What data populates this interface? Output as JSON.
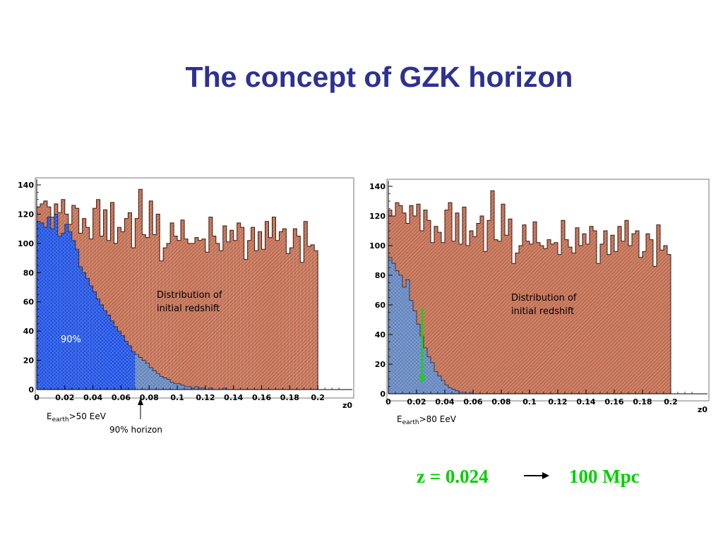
{
  "title": "The concept of GZK horizon",
  "conversion": {
    "redshift_label": "z = 0.024",
    "distance_label": "100 Mpc",
    "arrow_color": "#000000",
    "text_color": "#00d000"
  },
  "colors": {
    "initial": "#c97a5a",
    "initial_stroke": "#3a1a10",
    "survivors_dense": "#2255dd",
    "survivors_light": "#7da0d0",
    "marker": "#22cc22"
  },
  "chart_data": [
    {
      "type": "bar",
      "xlabel": "z0",
      "ylabel": "",
      "xlim": [
        0,
        0.22
      ],
      "ylim": [
        0,
        140
      ],
      "x_ticks": [
        "0",
        "0.02",
        "0.04",
        "0.06",
        "0.08",
        "0.1",
        "0.12",
        "0.14",
        "0.16",
        "0.18",
        "0.2"
      ],
      "y_ticks": [
        "0",
        "20",
        "40",
        "60",
        "80",
        "100",
        "120",
        "140"
      ],
      "bin_width": 0.0025,
      "series": [
        {
          "name": "Distribution of initial redshift",
          "values": [
            125,
            127,
            129,
            125,
            118,
            127,
            121,
            130,
            120,
            113,
            126,
            124,
            107,
            117,
            111,
            103,
            124,
            130,
            105,
            123,
            102,
            128,
            100,
            111,
            108,
            117,
            121,
            97,
            117,
            137,
            106,
            104,
            129,
            106,
            120,
            88,
            97,
            100,
            114,
            105,
            102,
            116,
            103,
            100,
            100,
            104,
            102,
            103,
            94,
            118,
            105,
            100,
            95,
            112,
            101,
            109,
            102,
            114,
            111,
            89,
            102,
            111,
            95,
            108,
            96,
            115,
            104,
            118,
            102,
            108,
            110,
            93,
            97,
            110,
            105,
            87,
            115,
            98,
            99,
            95
          ]
        },
        {
          "name": "",
          "values": [
            115,
            114,
            111,
            118,
            110,
            120,
            105,
            107,
            113,
            108,
            102,
            96,
            84,
            80,
            76,
            71,
            67,
            62,
            58,
            54,
            51,
            47,
            43,
            40,
            37,
            33,
            30,
            26,
            24,
            22,
            20,
            18,
            15,
            13,
            11,
            9,
            8,
            7,
            5,
            4,
            4,
            3,
            2,
            2,
            1,
            2,
            1,
            1,
            0,
            1,
            0,
            0,
            0,
            1,
            0,
            0,
            0,
            0,
            0,
            0,
            0,
            0,
            0,
            0,
            0,
            0,
            0,
            0,
            0,
            0,
            0,
            0,
            0,
            0,
            0,
            0,
            0,
            0,
            0,
            0
          ]
        }
      ],
      "annotations": {
        "distribution_line1": "Distribution of",
        "distribution_line2": "initial redshift",
        "percent_label": "90%",
        "energy_prefix": "E",
        "energy_subscript": "earth",
        "energy_suffix": ">50 EeV",
        "horizon_label": "90% horizon",
        "horizon_z": 0.07,
        "dense_fill_until_z": 0.07
      }
    },
    {
      "type": "bar",
      "xlabel": "z0",
      "ylabel": "",
      "xlim": [
        0,
        0.22
      ],
      "ylim": [
        0,
        140
      ],
      "x_ticks": [
        "0",
        "0.02",
        "0.04",
        "0.06",
        "0.08",
        "0.1",
        "0.12",
        "0.14",
        "0.16",
        "0.18",
        "0.2"
      ],
      "y_ticks": [
        "0",
        "20",
        "40",
        "60",
        "80",
        "100",
        "120",
        "140"
      ],
      "bin_width": 0.0025,
      "series": [
        {
          "name": "Distribution of initial redshift",
          "values": [
            124,
            120,
            129,
            127,
            122,
            115,
            127,
            120,
            128,
            110,
            124,
            117,
            102,
            113,
            109,
            102,
            124,
            129,
            103,
            122,
            101,
            126,
            100,
            110,
            106,
            115,
            120,
            96,
            117,
            137,
            104,
            103,
            128,
            107,
            118,
            88,
            95,
            100,
            114,
            103,
            101,
            116,
            102,
            100,
            98,
            104,
            101,
            102,
            94,
            117,
            104,
            99,
            95,
            112,
            100,
            108,
            101,
            113,
            110,
            88,
            101,
            110,
            94,
            107,
            96,
            113,
            103,
            117,
            100,
            108,
            110,
            92,
            96,
            108,
            104,
            86,
            114,
            97,
            100,
            94
          ]
        },
        {
          "name": "",
          "values": [
            92,
            88,
            83,
            80,
            72,
            77,
            63,
            56,
            47,
            39,
            31,
            25,
            21,
            15,
            12,
            9,
            6,
            4,
            3,
            2,
            1,
            1,
            0,
            1,
            0,
            0,
            0,
            0,
            0,
            0,
            0,
            0,
            0,
            0,
            0,
            0,
            0,
            0,
            0,
            0,
            0,
            0,
            0,
            0,
            0,
            0,
            0,
            0,
            0,
            0,
            0,
            0,
            0,
            0,
            0,
            0,
            0,
            0,
            0,
            0,
            0,
            0,
            0,
            0,
            0,
            0,
            0,
            0,
            0,
            0,
            0,
            0,
            0,
            0,
            0,
            0,
            0,
            0,
            0,
            0
          ]
        }
      ],
      "annotations": {
        "distribution_line1": "Distribution of",
        "distribution_line2": "initial redshift",
        "energy_prefix": "E",
        "energy_subscript": "earth",
        "energy_suffix": ">80 EeV",
        "marker_z": 0.024
      }
    }
  ]
}
